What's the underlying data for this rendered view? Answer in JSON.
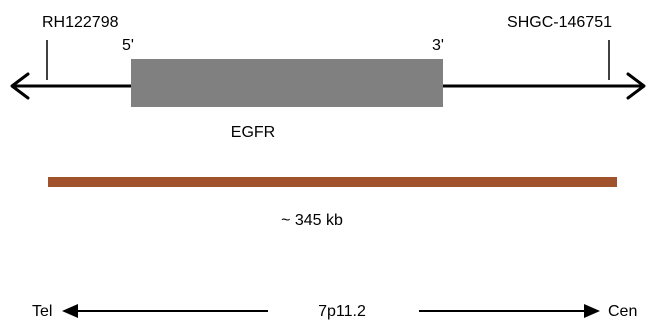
{
  "markers": {
    "left": "RH122798",
    "right": "SHGC-146751"
  },
  "gene": {
    "name": "EGFR",
    "five_prime": "5'",
    "three_prime": "3'",
    "color": "#808080"
  },
  "contig": {
    "size_label": "~ 345 kb",
    "color": "#a0522d"
  },
  "orientation": {
    "telomere": "Tel",
    "band": "7p11.2",
    "centromere": "Cen"
  }
}
